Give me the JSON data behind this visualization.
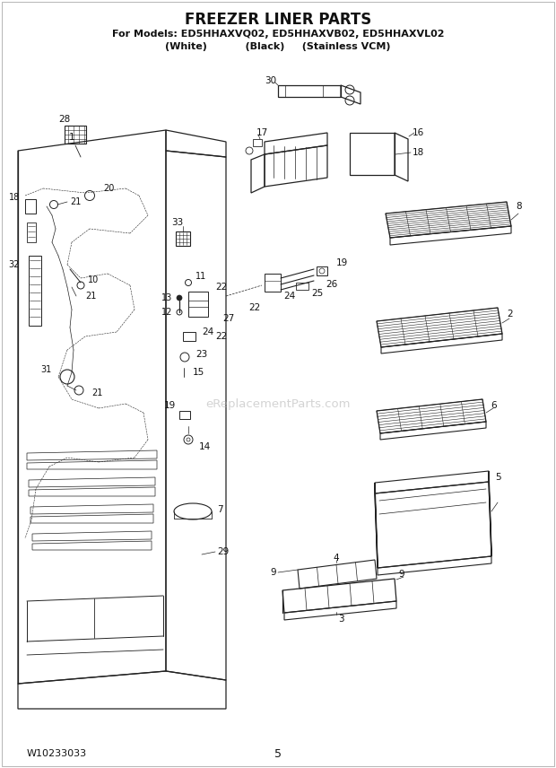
{
  "title": "FREEZER LINER PARTS",
  "subtitle1": "For Models: ED5HHAXVQ02, ED5HHAXVB02, ED5HHAXVL02",
  "subtitle2": "(White)           (Black)     (Stainless VCM)",
  "footer_left": "W10233033",
  "footer_center": "5",
  "bg_color": "#ffffff",
  "line_color": "#222222",
  "label_color": "#111111",
  "watermark": "eReplacementParts.com"
}
